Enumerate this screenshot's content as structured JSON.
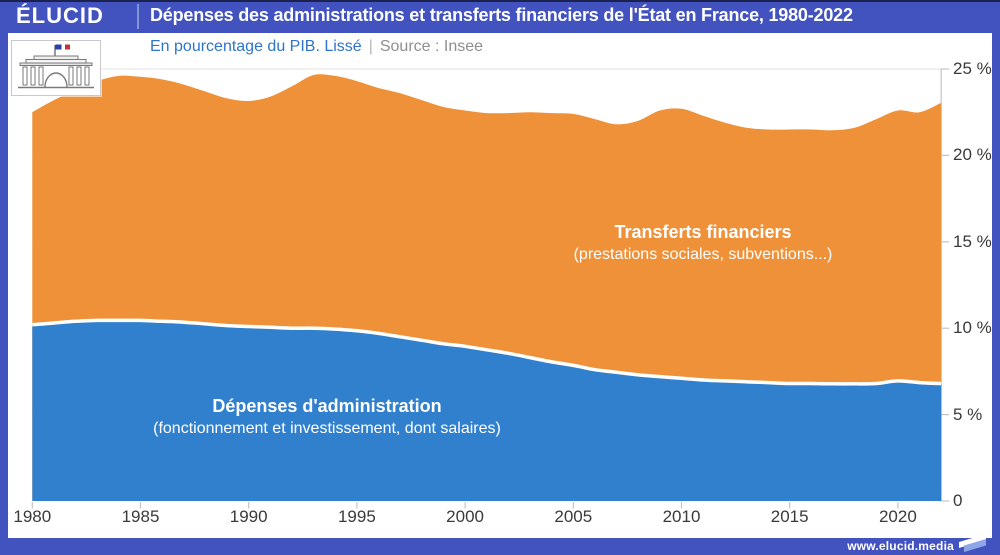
{
  "header": {
    "brand": "ÉLUCID",
    "title": "Dépenses des administrations et transferts financiers de l'État en France, 1980-2022"
  },
  "subtitle": {
    "left": "En pourcentage du PIB. Lissé",
    "separator": "|",
    "source": "Source : Insee"
  },
  "labels": {
    "transfers_title": "Transferts financiers",
    "transfers_sub": "(prestations sociales, subventions...)",
    "admin_title": "Dépenses d'administration",
    "admin_sub": "(fonctionnement et investissement, dont salaires)"
  },
  "footer": {
    "url": "www.elucid.media"
  },
  "colors": {
    "frame_blue": "#4253c0",
    "area_blue": "#3180ce",
    "area_orange": "#ee9139",
    "subtitle_blue": "#2f74c8",
    "source_gray": "#8f8f8f",
    "axis_text": "#3a3a3a",
    "gridline": "#e2e2e2",
    "tick": "#c4c4c4",
    "boundary_stroke": "#ffffff"
  },
  "y_axis": {
    "ticks": [
      {
        "value": 25,
        "label": "25 %"
      },
      {
        "value": 20,
        "label": "20 %"
      },
      {
        "value": 15,
        "label": "15 %"
      },
      {
        "value": 10,
        "label": "10 %"
      },
      {
        "value": 5,
        "label": "5 %"
      },
      {
        "value": 0,
        "label": "0"
      }
    ]
  },
  "x_axis": {
    "ticks": [
      1980,
      1985,
      1990,
      1995,
      2000,
      2005,
      2010,
      2015,
      2020
    ]
  },
  "chart_data": {
    "type": "area",
    "stacked": true,
    "title": "Dépenses des administrations et transferts financiers de l'État en France, 1980-2022",
    "subtitle": "En pourcentage du PIB. Lissé",
    "source": "Insee",
    "unit": "% du PIB",
    "xlim": [
      1980,
      2022
    ],
    "ylim": [
      0,
      25
    ],
    "grid": "horizontal",
    "legend_position": "inside-areas",
    "x": [
      1980,
      1981,
      1982,
      1983,
      1984,
      1985,
      1986,
      1987,
      1988,
      1989,
      1990,
      1991,
      1992,
      1993,
      1994,
      1995,
      1996,
      1997,
      1998,
      1999,
      2000,
      2001,
      2002,
      2003,
      2004,
      2005,
      2006,
      2007,
      2008,
      2009,
      2010,
      2011,
      2012,
      2013,
      2014,
      2015,
      2016,
      2017,
      2018,
      2019,
      2020,
      2021,
      2022
    ],
    "series": [
      {
        "name": "Dépenses d'administration (fonctionnement et investissement, dont salaires)",
        "color": "#3180ce",
        "values": [
          10.2,
          10.3,
          10.4,
          10.45,
          10.45,
          10.45,
          10.4,
          10.35,
          10.25,
          10.15,
          10.1,
          10.05,
          10.0,
          10.0,
          9.95,
          9.85,
          9.7,
          9.5,
          9.3,
          9.1,
          8.95,
          8.75,
          8.55,
          8.3,
          8.05,
          7.85,
          7.6,
          7.45,
          7.3,
          7.2,
          7.1,
          7.0,
          6.95,
          6.9,
          6.85,
          6.8,
          6.8,
          6.78,
          6.78,
          6.8,
          6.95,
          6.85,
          6.8
        ]
      },
      {
        "name": "Transferts financiers (prestations sociales, subventions...)",
        "color": "#ee9139",
        "values": [
          12.3,
          12.9,
          13.4,
          13.85,
          14.15,
          14.1,
          14.0,
          13.75,
          13.45,
          13.15,
          13.05,
          13.35,
          14.0,
          14.65,
          14.65,
          14.45,
          14.2,
          14.1,
          13.9,
          13.7,
          13.65,
          13.7,
          13.9,
          14.2,
          14.4,
          14.55,
          14.5,
          14.35,
          14.7,
          15.4,
          15.6,
          15.3,
          14.95,
          14.7,
          14.65,
          14.7,
          14.7,
          14.67,
          14.82,
          15.3,
          15.65,
          15.65,
          16.25
        ]
      }
    ]
  }
}
